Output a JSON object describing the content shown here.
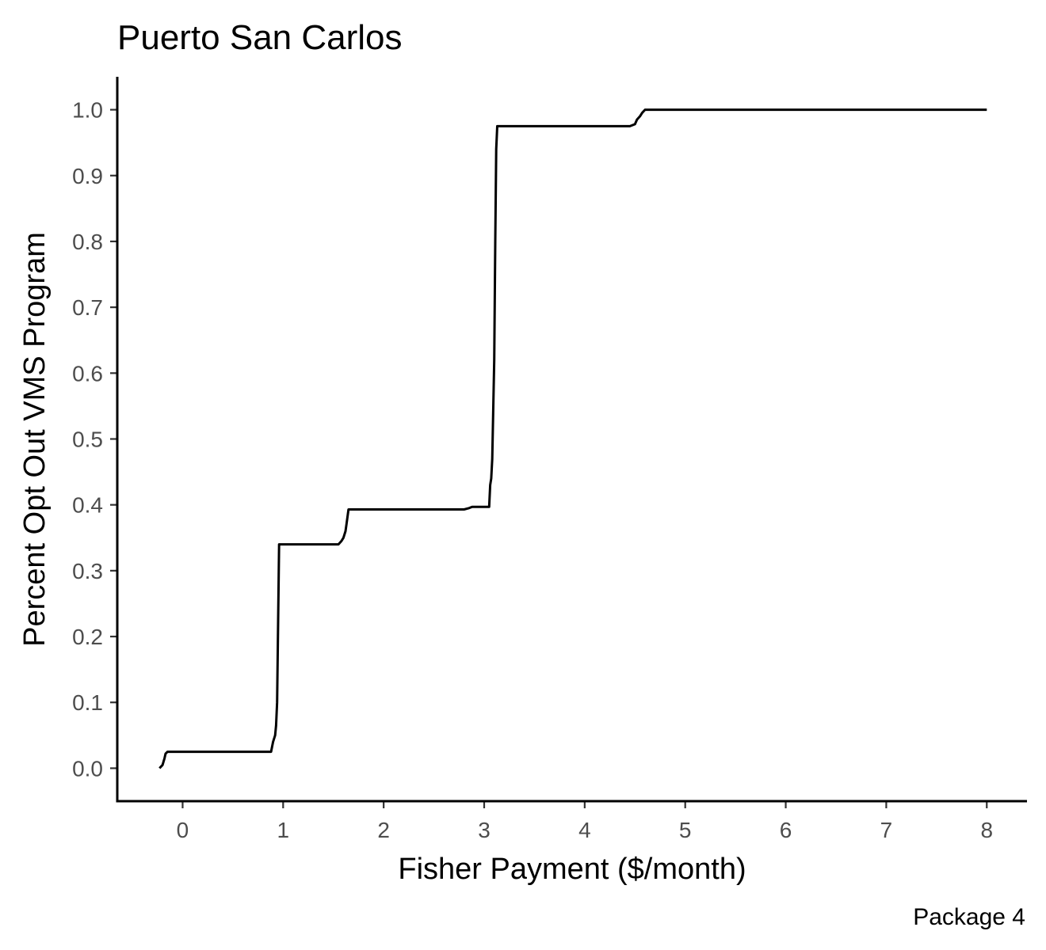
{
  "chart_data": {
    "type": "line",
    "title": "Puerto San Carlos",
    "xlabel": "Fisher Payment ($/month)",
    "ylabel": "Percent Opt Out VMS Program",
    "caption": "Package 4",
    "xlim": [
      -0.65,
      8.4
    ],
    "ylim": [
      -0.05,
      1.05
    ],
    "x_ticks": [
      0,
      1,
      2,
      3,
      4,
      5,
      6,
      7,
      8
    ],
    "x_tick_labels": [
      "0",
      "1",
      "2",
      "3",
      "4",
      "5",
      "6",
      "7",
      "8"
    ],
    "y_ticks": [
      0.0,
      0.1,
      0.2,
      0.3,
      0.4,
      0.5,
      0.6,
      0.7,
      0.8,
      0.9,
      1.0
    ],
    "y_tick_labels": [
      "0.0",
      "0.1",
      "0.2",
      "0.3",
      "0.4",
      "0.5",
      "0.6",
      "0.7",
      "0.8",
      "0.9",
      "1.0"
    ],
    "grid": false,
    "legend": "none",
    "series": [
      {
        "color": "#000000",
        "x": [
          -0.23,
          -0.2,
          -0.18,
          -0.17,
          -0.15,
          0.0,
          0.5,
          0.88,
          0.9,
          0.92,
          0.93,
          0.94,
          0.96,
          0.97,
          1.0,
          1.2,
          1.4,
          1.55,
          1.58,
          1.6,
          1.62,
          1.63,
          1.65,
          2.0,
          2.5,
          2.8,
          2.85,
          2.88,
          3.05,
          3.06,
          3.07,
          3.08,
          3.1,
          3.11,
          3.12,
          3.13,
          3.15,
          3.5,
          4.0,
          4.45,
          4.5,
          4.52,
          4.55,
          4.57,
          4.6,
          5.0,
          6.0,
          7.0,
          8.0
        ],
        "y": [
          0.0,
          0.005,
          0.015,
          0.022,
          0.025,
          0.025,
          0.025,
          0.025,
          0.04,
          0.05,
          0.065,
          0.1,
          0.34,
          0.34,
          0.34,
          0.34,
          0.34,
          0.34,
          0.345,
          0.35,
          0.36,
          0.37,
          0.393,
          0.393,
          0.393,
          0.393,
          0.395,
          0.397,
          0.397,
          0.43,
          0.44,
          0.47,
          0.62,
          0.8,
          0.94,
          0.975,
          0.975,
          0.975,
          0.975,
          0.975,
          0.978,
          0.985,
          0.99,
          0.995,
          1.0,
          1.0,
          1.0,
          1.0,
          1.0
        ]
      }
    ]
  }
}
